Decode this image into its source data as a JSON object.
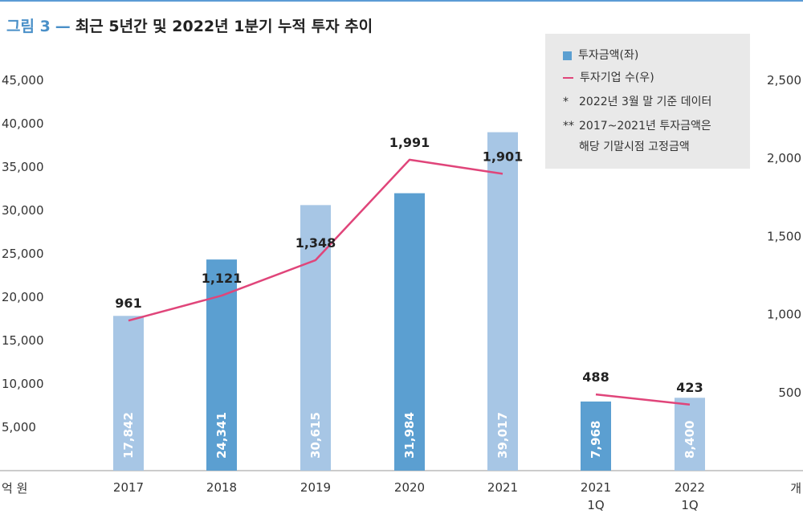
{
  "title": {
    "figure_label": "그림 3",
    "dash": "—",
    "text": "최근 5년간 및 2022년 1분기 누적 투자 추이"
  },
  "legend": {
    "bar_label": "투자금액(좌)",
    "line_label": "투자기업 수(우)",
    "note1_mark": "*",
    "note1_text": "2022년 3월 말 기준 데이터",
    "note2_mark": "**",
    "note2_line1": "2017~2021년 투자금액은",
    "note2_line2": "해당 기말시점 고정금액"
  },
  "colors": {
    "bar_light": "#a7c6e5",
    "bar_dark": "#5b9fd1",
    "line": "#e0457a",
    "accent": "#4a90c8"
  },
  "chart_data": {
    "type": "bar",
    "categories": [
      "2017",
      "2018",
      "2019",
      "2020",
      "2021",
      "2021\n1Q",
      "2022\n1Q"
    ],
    "series": [
      {
        "name": "투자금액(좌)",
        "type": "bar",
        "axis": "left",
        "values": [
          17842,
          24341,
          30615,
          31984,
          39017,
          7968,
          8400
        ],
        "labels": [
          "17,842",
          "24,341",
          "30,615",
          "31,984",
          "39,017",
          "7,968",
          "8,400"
        ],
        "shades": [
          "light",
          "dark",
          "light",
          "dark",
          "light",
          "dark",
          "light"
        ]
      },
      {
        "name": "투자기업 수(우)",
        "type": "line",
        "axis": "right",
        "values": [
          961,
          1121,
          1348,
          1991,
          1901,
          488,
          423
        ],
        "labels": [
          "961",
          "1,121",
          "1,348",
          "1,991",
          "1,901",
          "488",
          "423"
        ],
        "segments": [
          [
            0,
            4
          ],
          [
            5,
            6
          ]
        ]
      }
    ],
    "left_axis": {
      "unit": "억 원",
      "ylim": [
        0,
        45000
      ],
      "ticks": [
        5000,
        10000,
        15000,
        20000,
        25000,
        30000,
        35000,
        40000,
        45000
      ],
      "tick_labels": [
        "5,000",
        "10,000",
        "15,000",
        "20,000",
        "25,000",
        "30,000",
        "35,000",
        "40,000",
        "45,000"
      ]
    },
    "right_axis": {
      "unit": "개",
      "ylim": [
        0,
        2500
      ],
      "ticks": [
        500,
        1000,
        1500,
        2000,
        2500
      ],
      "tick_labels": [
        "500",
        "1,000",
        "1,500",
        "2,000",
        "2,500"
      ]
    },
    "grid": false,
    "legend_position": "top-right"
  }
}
